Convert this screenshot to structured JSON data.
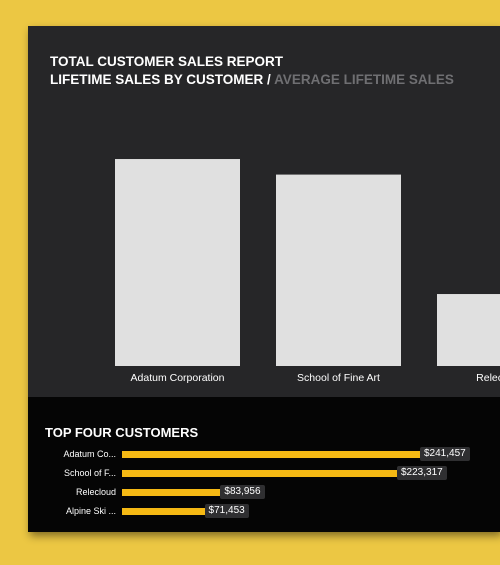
{
  "report": {
    "title": "TOTAL CUSTOMER SALES REPORT",
    "tab_active": "LIFETIME SALES BY CUSTOMER",
    "tab_separator": "/",
    "tab_inactive": "AVERAGE LIFETIME SALES"
  },
  "chart_data": [
    {
      "type": "bar",
      "categories": [
        "Adatum Corporation",
        "School of Fine Art",
        "Relecloud"
      ],
      "values": [
        241457,
        223317,
        83956
      ],
      "ylim": [
        0,
        280000
      ],
      "colors": {
        "bar": "#e0e0e0",
        "label": "#ffffff"
      }
    },
    {
      "type": "bar",
      "orientation": "horizontal",
      "title": "TOP FOUR CUSTOMERS",
      "categories": [
        "Adatum Co...",
        "School of F...",
        "Relecloud",
        "Alpine Ski ..."
      ],
      "values": [
        241457,
        223317,
        83956,
        71453
      ],
      "value_labels": [
        "$241,457",
        "$223,317",
        "$83,956",
        "$71,453"
      ],
      "colors": {
        "bar": "#f5b914"
      }
    }
  ],
  "colors": {
    "page_background": "#ecc743",
    "card_background": "#262628",
    "bottom_background": "#050505",
    "accent": "#f5b914",
    "inactive_text": "#6f6f72"
  }
}
